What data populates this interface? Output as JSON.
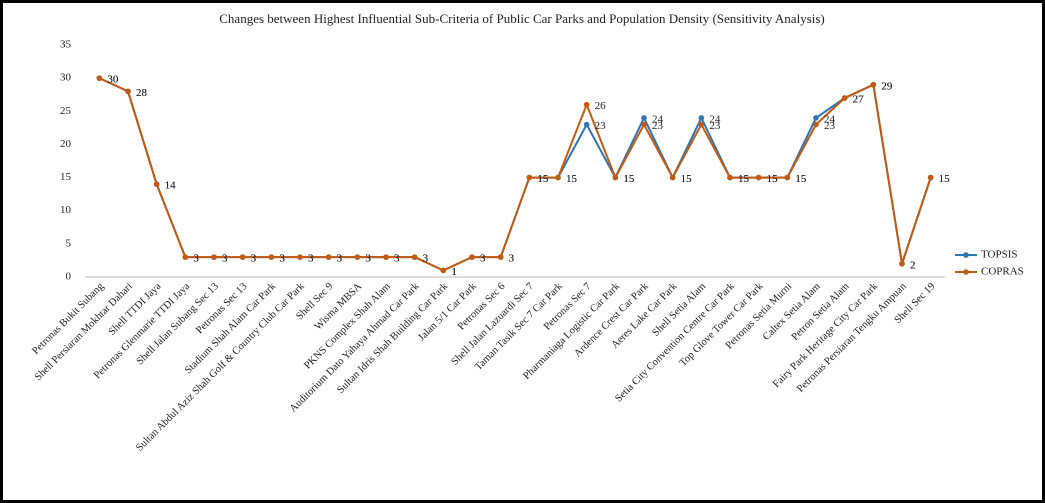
{
  "chart_data": {
    "type": "line",
    "title": "Changes between Highest Influential Sub-Criteria of Public Car Parks and Population Density (Sensitivity Analysis)",
    "categories": [
      "Petronas Bukit Subang",
      "Shell Persiaran Mokhtar Dahari",
      "Shell TTDI Jaya",
      "Petronas Glenmarie TTDI Jaya",
      "Shell Jalan Subang Sec 13",
      "Petronas Sec 13",
      "Stadium Shah Alam Car Park",
      "Sultan Abdul Aziz Shah Golf & Country Club Car Park",
      "Shell Sec 9",
      "Wisma MBSA",
      "PKNS Complex Shah Alam",
      "Auditorium Dato Yahaya Ahmad Car Park",
      "Sultan Idris Shah Building Car Park",
      "Jalan 5/1 Car Park",
      "Petronas Sec 6",
      "Shell Jalan Lazuardi Sec 7",
      "Taman Tasik Sec 7 Car Park",
      "Petronas Sec 7",
      "Pharmaniaga Logistic Car Park",
      "Ardence Crest Car Park",
      "Aeres Lake Car Park",
      "Shell Setia Alam",
      "Setia City Convention Centre Car Park",
      "Top Glove Tower Car Park",
      "Petronas Setia Murni",
      "Caltex Setia Alam",
      "Petron Setia Alam",
      "Fairy Park Heritage City Car Park",
      "Petronas Persiaran Tengku Ampuan",
      "Shell Sec 19"
    ],
    "series": [
      {
        "name": "TOPSIS",
        "color": "#2e75b6",
        "values": [
          30,
          28,
          14,
          3,
          3,
          3,
          3,
          3,
          3,
          3,
          3,
          3,
          1,
          3,
          3,
          15,
          15,
          23,
          15,
          24,
          15,
          24,
          15,
          15,
          15,
          24,
          27,
          29,
          2,
          15
        ]
      },
      {
        "name": "COPRAS",
        "color": "#c55a11",
        "values": [
          30,
          28,
          14,
          3,
          3,
          3,
          3,
          3,
          3,
          3,
          3,
          3,
          1,
          3,
          3,
          15,
          15,
          26,
          15,
          23,
          15,
          23,
          15,
          15,
          15,
          23,
          27,
          29,
          2,
          15
        ]
      }
    ],
    "ylim": [
      0,
      35
    ],
    "yticks": [
      0,
      5,
      10,
      15,
      20,
      25,
      30,
      35
    ],
    "legend": "right"
  }
}
